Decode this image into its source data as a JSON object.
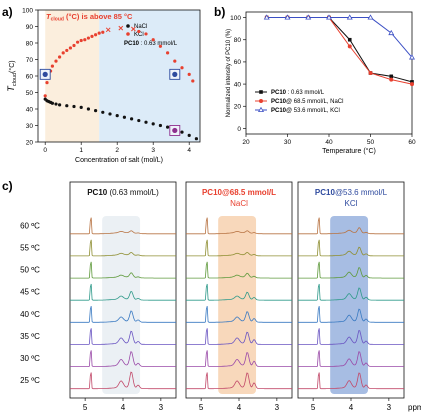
{
  "panel_labels": {
    "a": "a)",
    "b": "b)",
    "c": "c)"
  },
  "chart_data": [
    {
      "id": "a",
      "type": "scatter",
      "ylabel": "T_cloud (°C)",
      "ylabel_main": "T",
      "ylabel_sub": "cloud",
      "ylabel_unit": "(°C)",
      "xlabel": "Concentration of salt (mol/L)",
      "xlim": [
        -0.2,
        4.3
      ],
      "ylim": [
        20,
        100
      ],
      "xticks": [
        0,
        1,
        2,
        3,
        4
      ],
      "yticks": [
        20,
        30,
        40,
        50,
        60,
        70,
        80,
        90,
        100
      ],
      "annotation": "T_cloud (°C) is above 85 °C",
      "annotation_parts": {
        "t": "T",
        "sub": "cloud",
        "rest": " (°C) is above 85 °C"
      },
      "annotation_color": "#e8402f",
      "legend": [
        {
          "label": "NaCl",
          "color": "#111111"
        },
        {
          "label": "KCl",
          "color": "#e8402f"
        },
        {
          "label": "PC10 : 0.63 mmol/L",
          "bold": "PC10",
          "rest": " : 0.63 mmol/L"
        }
      ],
      "regions": [
        {
          "from": 0.0,
          "to": 1.5,
          "color": "#fbeedd"
        },
        {
          "from": 1.5,
          "to": 4.3,
          "color": "#dcebf8"
        }
      ],
      "series": [
        {
          "name": "NaCl",
          "color": "#111111",
          "x": [
            0,
            0.05,
            0.1,
            0.15,
            0.2,
            0.3,
            0.4,
            0.6,
            0.8,
            1.0,
            1.2,
            1.4,
            1.6,
            1.8,
            2.0,
            2.2,
            2.4,
            2.6,
            2.8,
            3.0,
            3.2,
            3.4,
            3.6,
            3.8,
            4.0,
            4.2
          ],
          "y": [
            46,
            45,
            44.5,
            44,
            43.5,
            43,
            42.5,
            42,
            41.5,
            41,
            40,
            39,
            38,
            37,
            36,
            35,
            34,
            33,
            32,
            31,
            30,
            29,
            28,
            26,
            24,
            22
          ]
        },
        {
          "name": "KCl",
          "color": "#e8402f",
          "x": [
            0,
            0.05,
            0.1,
            0.15,
            0.2,
            0.3,
            0.4,
            0.5,
            0.6,
            0.7,
            0.8,
            0.9,
            1.0,
            1.1,
            1.2,
            1.3,
            1.4,
            1.5,
            1.6,
            2.6,
            2.8,
            3.0,
            3.2,
            3.4,
            3.6,
            3.8,
            4.0,
            4.1
          ],
          "y": [
            48,
            56,
            60,
            63,
            66,
            69,
            71.5,
            74,
            75.5,
            77,
            78.5,
            80.5,
            81.5,
            82,
            83,
            84,
            85,
            86,
            86.5,
            87,
            85.5,
            82,
            78,
            74,
            69,
            65,
            61,
            57
          ]
        }
      ],
      "crosses": {
        "color": "#e8402f",
        "x": [
          1.75,
          2.1,
          2.45
        ],
        "y": [
          88,
          89,
          88.5
        ]
      },
      "markers": [
        {
          "x": 0.0,
          "y": 61,
          "color": "#2e4a9e",
          "box": "#2e4a9e"
        },
        {
          "x": 3.6,
          "y": 61,
          "color": "#2e4a9e",
          "box": "#2e4a9e"
        },
        {
          "x": 3.6,
          "y": 27,
          "color": "#8e2f8e",
          "box": "#8e2f8e"
        }
      ]
    },
    {
      "id": "b",
      "type": "line",
      "xlabel": "Temperature (°C)",
      "ylabel": "Normalized intensity of PC10 (%)",
      "xlim": [
        20,
        60
      ],
      "ylim": [
        -5,
        105
      ],
      "xticks": [
        20,
        30,
        40,
        50,
        60
      ],
      "yticks": [
        0,
        20,
        40,
        60,
        80,
        100
      ],
      "series": [
        {
          "name": "PC10 : 0.63 mmol/L",
          "bold": "PC10",
          "rest": " : 0.63 mmol/L",
          "color": "#111111",
          "marker": "square",
          "x": [
            25,
            30,
            35,
            40,
            45,
            50,
            55,
            60
          ],
          "y": [
            100,
            100,
            100,
            100,
            80,
            50,
            47,
            42
          ]
        },
        {
          "name": "PC10@ 68.5 mmol/L, NaCl",
          "bold": "PC10",
          "rest": "@ 68.5 mmol/L, NaCl",
          "color": "#e8402f",
          "marker": "circle",
          "x": [
            25,
            30,
            35,
            40,
            45,
            50,
            55,
            60
          ],
          "y": [
            100,
            100,
            100,
            100,
            74,
            50,
            44,
            40
          ]
        },
        {
          "name": "PC10@ 53.6 mmol/L, KCl",
          "bold": "PC10",
          "rest": "@ 53.6 mmol/L, KCl",
          "color": "#3b4fc4",
          "marker": "triangle",
          "x": [
            25,
            30,
            35,
            40,
            45,
            50,
            55,
            60
          ],
          "y": [
            100,
            100,
            100,
            100,
            100,
            100,
            86,
            64
          ]
        }
      ]
    },
    {
      "id": "c",
      "type": "line",
      "subtype": "stacked NMR spectra",
      "xlabel": "ppm",
      "temperatures": [
        "60 ºC",
        "55 ºC",
        "50 ºC",
        "45 ºC",
        "40 ºC",
        "35 ºC",
        "30 ºC",
        "25 ºC"
      ],
      "trace_colors": [
        "#b87444",
        "#8f8f33",
        "#5f9a3c",
        "#2f9a8a",
        "#3a7ac2",
        "#6a55c2",
        "#9a4aa8",
        "#c24a6a"
      ],
      "sub_panels": [
        {
          "title_bold": "PC10",
          "title_rest": " (0.63 mmol/L)",
          "title_bold_color": "#111111",
          "title_rest_color": "#111111",
          "line2": "",
          "line2_color": "#111111",
          "band_color": "#e9eef3",
          "xticks": [
            "5",
            "4",
            "3"
          ],
          "peak_heights": [
            [
              0.25,
              0.2
            ],
            [
              0.3,
              0.25
            ],
            [
              0.5,
              0.3
            ],
            [
              0.9,
              0.5
            ],
            [
              1.2,
              0.7
            ],
            [
              1.4,
              0.9
            ],
            [
              1.6,
              1.0
            ],
            [
              1.8,
              1.1
            ]
          ]
        },
        {
          "title_bold": "PC10@68.5 mmol/L",
          "title_rest": "",
          "title_bold_color": "#e8402f",
          "title_rest_color": "#e8402f",
          "line2": "NaCl",
          "line2_color": "#e8402f",
          "band_color": "#f7d4b4",
          "xticks": [
            "5",
            "4",
            "3"
          ],
          "peak_heights": [
            [
              0.25,
              0.2
            ],
            [
              0.3,
              0.25
            ],
            [
              0.45,
              0.3
            ],
            [
              0.8,
              0.5
            ],
            [
              1.1,
              0.7
            ],
            [
              1.3,
              0.9
            ],
            [
              1.5,
              1.0
            ],
            [
              1.7,
              1.1
            ]
          ]
        },
        {
          "title_bold": "PC10",
          "title_rest": "@53.6 mmol/L",
          "title_bold_color": "#2e4a9e",
          "title_rest_color": "#2e4a9e",
          "line2": "KCl",
          "line2_color": "#2e4a9e",
          "band_color": "#9db6e0",
          "xticks": [
            "5",
            "4",
            "3"
          ],
          "peak_heights": [
            [
              0.6,
              0.4
            ],
            [
              0.9,
              0.6
            ],
            [
              1.1,
              0.8
            ],
            [
              1.3,
              0.9
            ],
            [
              1.4,
              1.0
            ],
            [
              1.5,
              1.05
            ],
            [
              1.6,
              1.1
            ],
            [
              1.7,
              1.15
            ]
          ]
        }
      ],
      "x_unit": "ppm"
    }
  ]
}
